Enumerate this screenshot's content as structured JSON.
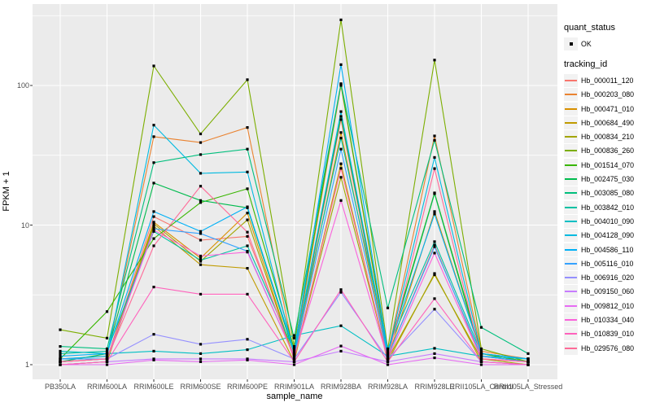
{
  "chart_data": {
    "type": "line",
    "title": "",
    "xlabel": "sample_name",
    "ylabel": "FPKM + 1",
    "yscale": "log10",
    "ylim": [
      0.9,
      380
    ],
    "yticks": [
      1,
      10,
      100
    ],
    "ytick_labels": [
      "1",
      "10",
      "100"
    ],
    "minor_gridlines_at": [
      3.1623,
      31.623,
      316.23
    ],
    "grid": true,
    "legend_position": "right",
    "panel_bg": "#EBEBEB",
    "grid_color": "#FFFFFF",
    "tick_color": "#333333",
    "point_color": "#000000",
    "quant_status": {
      "title": "quant_status",
      "items": [
        {
          "label": "OK",
          "marker": "black-point"
        }
      ]
    },
    "tracking_title": "tracking_id",
    "categories": [
      "PB350LA",
      "RRIM600LA",
      "RRIM600LE",
      "RRIM600SE",
      "RRIM600PE",
      "RRIM901LA",
      "RRIM928BA",
      "RRIM928LA",
      "RRIM928LE",
      "RRII105LA_Control",
      "RRII105LA_Stressed"
    ],
    "series": [
      {
        "name": "Hb_000011_120",
        "color": "#F8766D",
        "values": [
          1.05,
          1.1,
          11.5,
          7.8,
          8.3,
          1.15,
          57,
          1.15,
          7.2,
          1.1,
          1.05
        ]
      },
      {
        "name": "Hb_000203_080",
        "color": "#EA8331",
        "values": [
          1.1,
          1.15,
          43,
          39,
          50,
          1.2,
          100,
          1.2,
          43.5,
          1.25,
          1.1
        ]
      },
      {
        "name": "Hb_000471_010",
        "color": "#D89000",
        "values": [
          1.05,
          1.1,
          10.5,
          5.8,
          12.2,
          1.1,
          46,
          1.1,
          12.5,
          1.2,
          1.05
        ]
      },
      {
        "name": "Hb_000684_490",
        "color": "#C09B00",
        "values": [
          1.0,
          1.05,
          9.8,
          5.2,
          4.9,
          1.05,
          27.5,
          1.05,
          4.5,
          1.05,
          1.0
        ]
      },
      {
        "name": "Hb_000834_210",
        "color": "#A3A500",
        "values": [
          1.0,
          1.05,
          10.2,
          5.5,
          10.9,
          1.1,
          22,
          1.1,
          4.4,
          1.1,
          1.0
        ]
      },
      {
        "name": "Hb_000836_260",
        "color": "#7CAE00",
        "values": [
          1.78,
          1.55,
          138,
          45,
          110,
          1.35,
          295,
          1.3,
          152,
          1.3,
          1.05
        ]
      },
      {
        "name": "Hb_001514_070",
        "color": "#39B600",
        "values": [
          1.1,
          2.4,
          8.0,
          14.5,
          18.2,
          1.3,
          102,
          1.25,
          17.0,
          1.2,
          1.05
        ]
      },
      {
        "name": "Hb_002475_030",
        "color": "#00BB4E",
        "values": [
          1.05,
          1.2,
          20,
          15,
          13.3,
          1.2,
          60,
          1.2,
          16.8,
          1.15,
          1.05
        ]
      },
      {
        "name": "Hb_003085_080",
        "color": "#00BF7D",
        "values": [
          1.35,
          1.3,
          28,
          32,
          35,
          1.55,
          103,
          2.55,
          40.5,
          1.85,
          1.2
        ]
      },
      {
        "name": "Hb_003842_010",
        "color": "#00C1A3",
        "values": [
          1.2,
          1.25,
          9.0,
          5.6,
          7.1,
          1.25,
          42,
          1.3,
          7.6,
          1.2,
          1.1
        ]
      },
      {
        "name": "Hb_004010_090",
        "color": "#00BFC4",
        "values": [
          1.25,
          1.2,
          1.25,
          1.2,
          1.28,
          1.62,
          1.9,
          1.15,
          1.31,
          1.15,
          1.1
        ]
      },
      {
        "name": "Hb_004128_090",
        "color": "#00BAE0",
        "values": [
          1.1,
          1.15,
          52,
          23.5,
          24,
          1.2,
          65,
          1.2,
          30.5,
          1.2,
          1.1
        ]
      },
      {
        "name": "Hb_004586_110",
        "color": "#00B0F6",
        "values": [
          1.15,
          1.2,
          12.5,
          9.0,
          13.5,
          1.25,
          141,
          1.25,
          12.0,
          1.2,
          1.1
        ]
      },
      {
        "name": "Hb_005116_010",
        "color": "#35A2FF",
        "values": [
          1.1,
          1.1,
          9.4,
          8.7,
          6.5,
          1.15,
          35,
          1.15,
          7.0,
          1.15,
          1.05
        ]
      },
      {
        "name": "Hb_006916_020",
        "color": "#9590FF",
        "values": [
          1.05,
          1.1,
          1.65,
          1.4,
          1.52,
          1.1,
          3.3,
          1.1,
          2.5,
          1.05,
          1.0
        ]
      },
      {
        "name": "Hb_009150_060",
        "color": "#C77CFF",
        "values": [
          1.0,
          1.05,
          1.1,
          1.1,
          1.1,
          1.05,
          1.25,
          1.05,
          1.2,
          1.05,
          1.0
        ]
      },
      {
        "name": "Hb_009812_010",
        "color": "#E76BF3",
        "values": [
          1.0,
          1.0,
          1.08,
          1.05,
          1.08,
          1.0,
          1.36,
          1.0,
          1.12,
          1.0,
          1.0
        ]
      },
      {
        "name": "Hb_010334_040",
        "color": "#FA62DB",
        "values": [
          1.05,
          1.1,
          9.2,
          6.0,
          6.4,
          1.15,
          15,
          1.1,
          6.3,
          1.1,
          1.05
        ]
      },
      {
        "name": "Hb_010839_010",
        "color": "#FF62BC",
        "values": [
          1.0,
          1.05,
          3.6,
          3.2,
          3.2,
          1.05,
          3.45,
          1.05,
          2.97,
          1.05,
          1.0
        ]
      },
      {
        "name": "Hb_029576_080",
        "color": "#FF6A98",
        "values": [
          1.05,
          1.1,
          7.1,
          19,
          8.9,
          1.1,
          25.5,
          1.1,
          25.4,
          1.1,
          1.05
        ]
      }
    ]
  }
}
